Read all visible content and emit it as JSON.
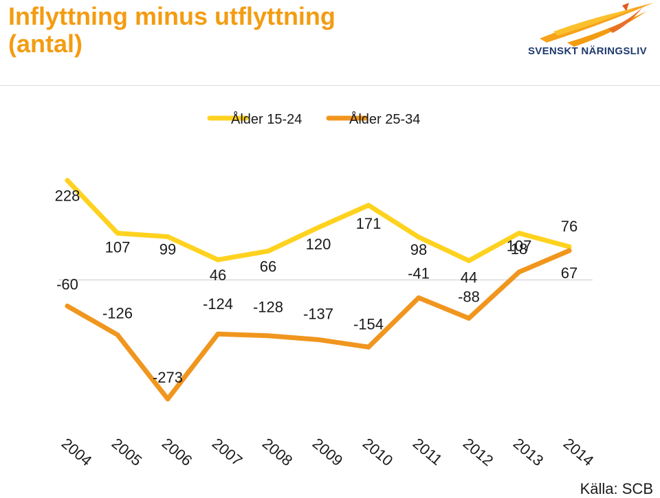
{
  "header": {
    "title_line1": "Inflyttning minus utflyttning",
    "title_line2": "(antal)",
    "logo_text": "SVENSKT NÄRINGSLIV"
  },
  "source": "Källa: SCB",
  "colors": {
    "title": "#f39c12",
    "logo_text": "#1f3a6e",
    "zero_line": "#d9d9d9"
  },
  "chart_data": {
    "type": "line",
    "x": [
      "2004",
      "2005",
      "2006",
      "2007",
      "2008",
      "2009",
      "2010",
      "2011",
      "2012",
      "2013",
      "2014"
    ],
    "ylim": [
      -300,
      240
    ],
    "grid": false,
    "legend_position": "top",
    "series": [
      {
        "name": "Ålder 15-24",
        "color": "#ffd21f",
        "values": [
          228,
          107,
          99,
          46,
          66,
          120,
          171,
          98,
          44,
          107,
          76
        ]
      },
      {
        "name": "Ålder 25-34",
        "color": "#f0961e",
        "values": [
          -60,
          -126,
          -273,
          -124,
          -128,
          -137,
          -154,
          -41,
          -88,
          18,
          67
        ]
      }
    ]
  }
}
